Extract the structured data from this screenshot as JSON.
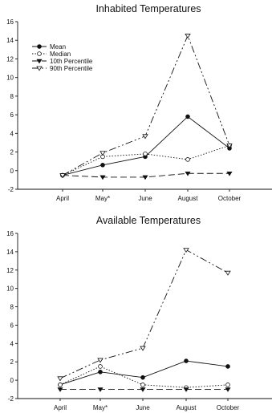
{
  "chart_data": [
    {
      "type": "line",
      "title": "Inhabited Temperatures",
      "xlabel": "",
      "ylabel": "",
      "categories": [
        "April",
        "May*",
        "June",
        "August",
        "October"
      ],
      "ylim": [
        -2,
        16
      ],
      "yticks": [
        -2,
        0,
        2,
        4,
        6,
        8,
        10,
        12,
        14,
        16
      ],
      "grid": false,
      "legend_position": "top-left",
      "series": [
        {
          "name": "Mean",
          "values": [
            -0.5,
            0.6,
            1.5,
            5.8,
            2.4
          ]
        },
        {
          "name": "Median",
          "values": [
            -0.5,
            1.5,
            1.8,
            1.2,
            2.7
          ]
        },
        {
          "name": "10th Percentile",
          "values": [
            -0.5,
            -0.7,
            -0.7,
            -0.3,
            -0.3
          ]
        },
        {
          "name": "90th Percentile",
          "values": [
            -0.5,
            1.9,
            3.7,
            14.5,
            2.7
          ]
        }
      ]
    },
    {
      "type": "line",
      "title": "Available Temperatures",
      "xlabel": "",
      "ylabel": "",
      "categories": [
        "April",
        "May*",
        "June",
        "August",
        "October"
      ],
      "ylim": [
        -2,
        16
      ],
      "yticks": [
        -2,
        0,
        2,
        4,
        6,
        8,
        10,
        12,
        14,
        16
      ],
      "grid": false,
      "legend_position": "none",
      "series": [
        {
          "name": "Mean",
          "values": [
            -0.5,
            0.9,
            0.3,
            2.1,
            1.5
          ]
        },
        {
          "name": "Median",
          "values": [
            -0.5,
            1.5,
            -0.5,
            -0.8,
            -0.5
          ]
        },
        {
          "name": "10th Percentile",
          "values": [
            -1.0,
            -1.0,
            -1.0,
            -1.0,
            -1.0
          ]
        },
        {
          "name": "90th Percentile",
          "values": [
            0.2,
            2.2,
            3.5,
            14.2,
            11.7
          ]
        }
      ]
    }
  ]
}
